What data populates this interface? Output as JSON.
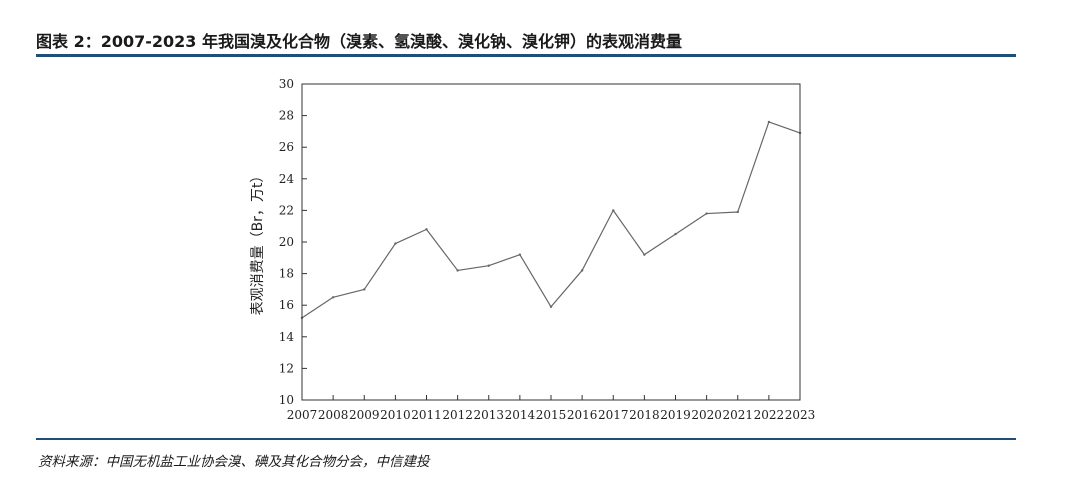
{
  "header": {
    "title": "图表 2：2007-2023 年我国溴及化合物（溴素、氢溴酸、溴化钠、溴化钾）的表观消费量"
  },
  "footer": {
    "source": "资料来源：中国无机盐工业协会溴、碘及其化合物分会，中信建投"
  },
  "colors": {
    "rule": "#1f4e79",
    "line": "#666666",
    "axis": "#333333"
  },
  "chart_data": {
    "type": "line",
    "title": "",
    "xlabel": "",
    "ylabel": "表观消费量（Br，万t）",
    "x": [
      "2007",
      "2008",
      "2009",
      "2010",
      "2011",
      "2012",
      "2013",
      "2014",
      "2015",
      "2016",
      "2017",
      "2018",
      "2019",
      "2020",
      "2021",
      "2022",
      "2023"
    ],
    "series": [
      {
        "values": [
          15.2,
          16.5,
          17.0,
          19.9,
          20.8,
          18.2,
          18.5,
          19.2,
          15.9,
          18.2,
          22.0,
          19.2,
          20.5,
          21.8,
          21.9,
          27.6,
          26.9
        ]
      }
    ],
    "ylim": [
      10,
      30
    ],
    "yticks": [
      10,
      12,
      14,
      16,
      18,
      20,
      22,
      24,
      26,
      28,
      30
    ],
    "grid": false,
    "legend": "none"
  }
}
